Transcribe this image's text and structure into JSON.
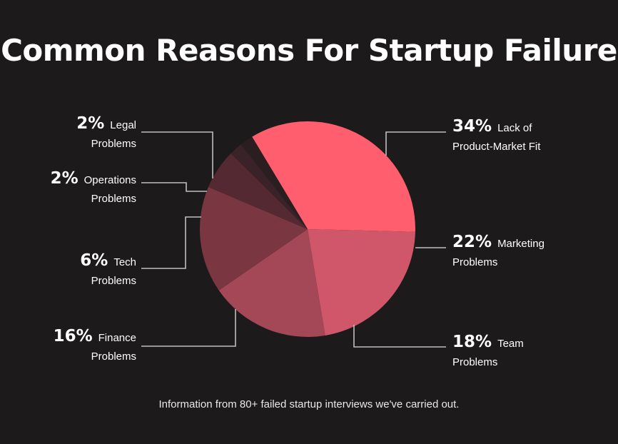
{
  "chart_data": {
    "type": "pie",
    "title": "Common Reasons For Startup Failure",
    "caption": "Information from 80+ failed startup interviews we've carried out.",
    "slices": [
      {
        "pct_label": "34%",
        "value": 34,
        "line1": "Lack of",
        "line2": "Product-Market Fit",
        "color": "#ff5e6e"
      },
      {
        "pct_label": "22%",
        "value": 22,
        "line1": "Marketing",
        "line2": "Problems",
        "color": "#d05769"
      },
      {
        "pct_label": "18%",
        "value": 18,
        "line1": "Team",
        "line2": "Problems",
        "color": "#a44857"
      },
      {
        "pct_label": "16%",
        "value": 16,
        "line1": "Finance",
        "line2": "Problems",
        "color": "#7a3641"
      },
      {
        "pct_label": "6%",
        "value": 6,
        "line1": "Tech",
        "line2": "Problems",
        "color": "#552932"
      },
      {
        "pct_label": "2%",
        "value": 2,
        "line1": "Operations",
        "line2": "Problems",
        "color": "#3a2328"
      },
      {
        "pct_label": "2%",
        "value": 2,
        "line1": "Legal",
        "line2": "Problems",
        "color": "#2a1e21"
      }
    ]
  }
}
